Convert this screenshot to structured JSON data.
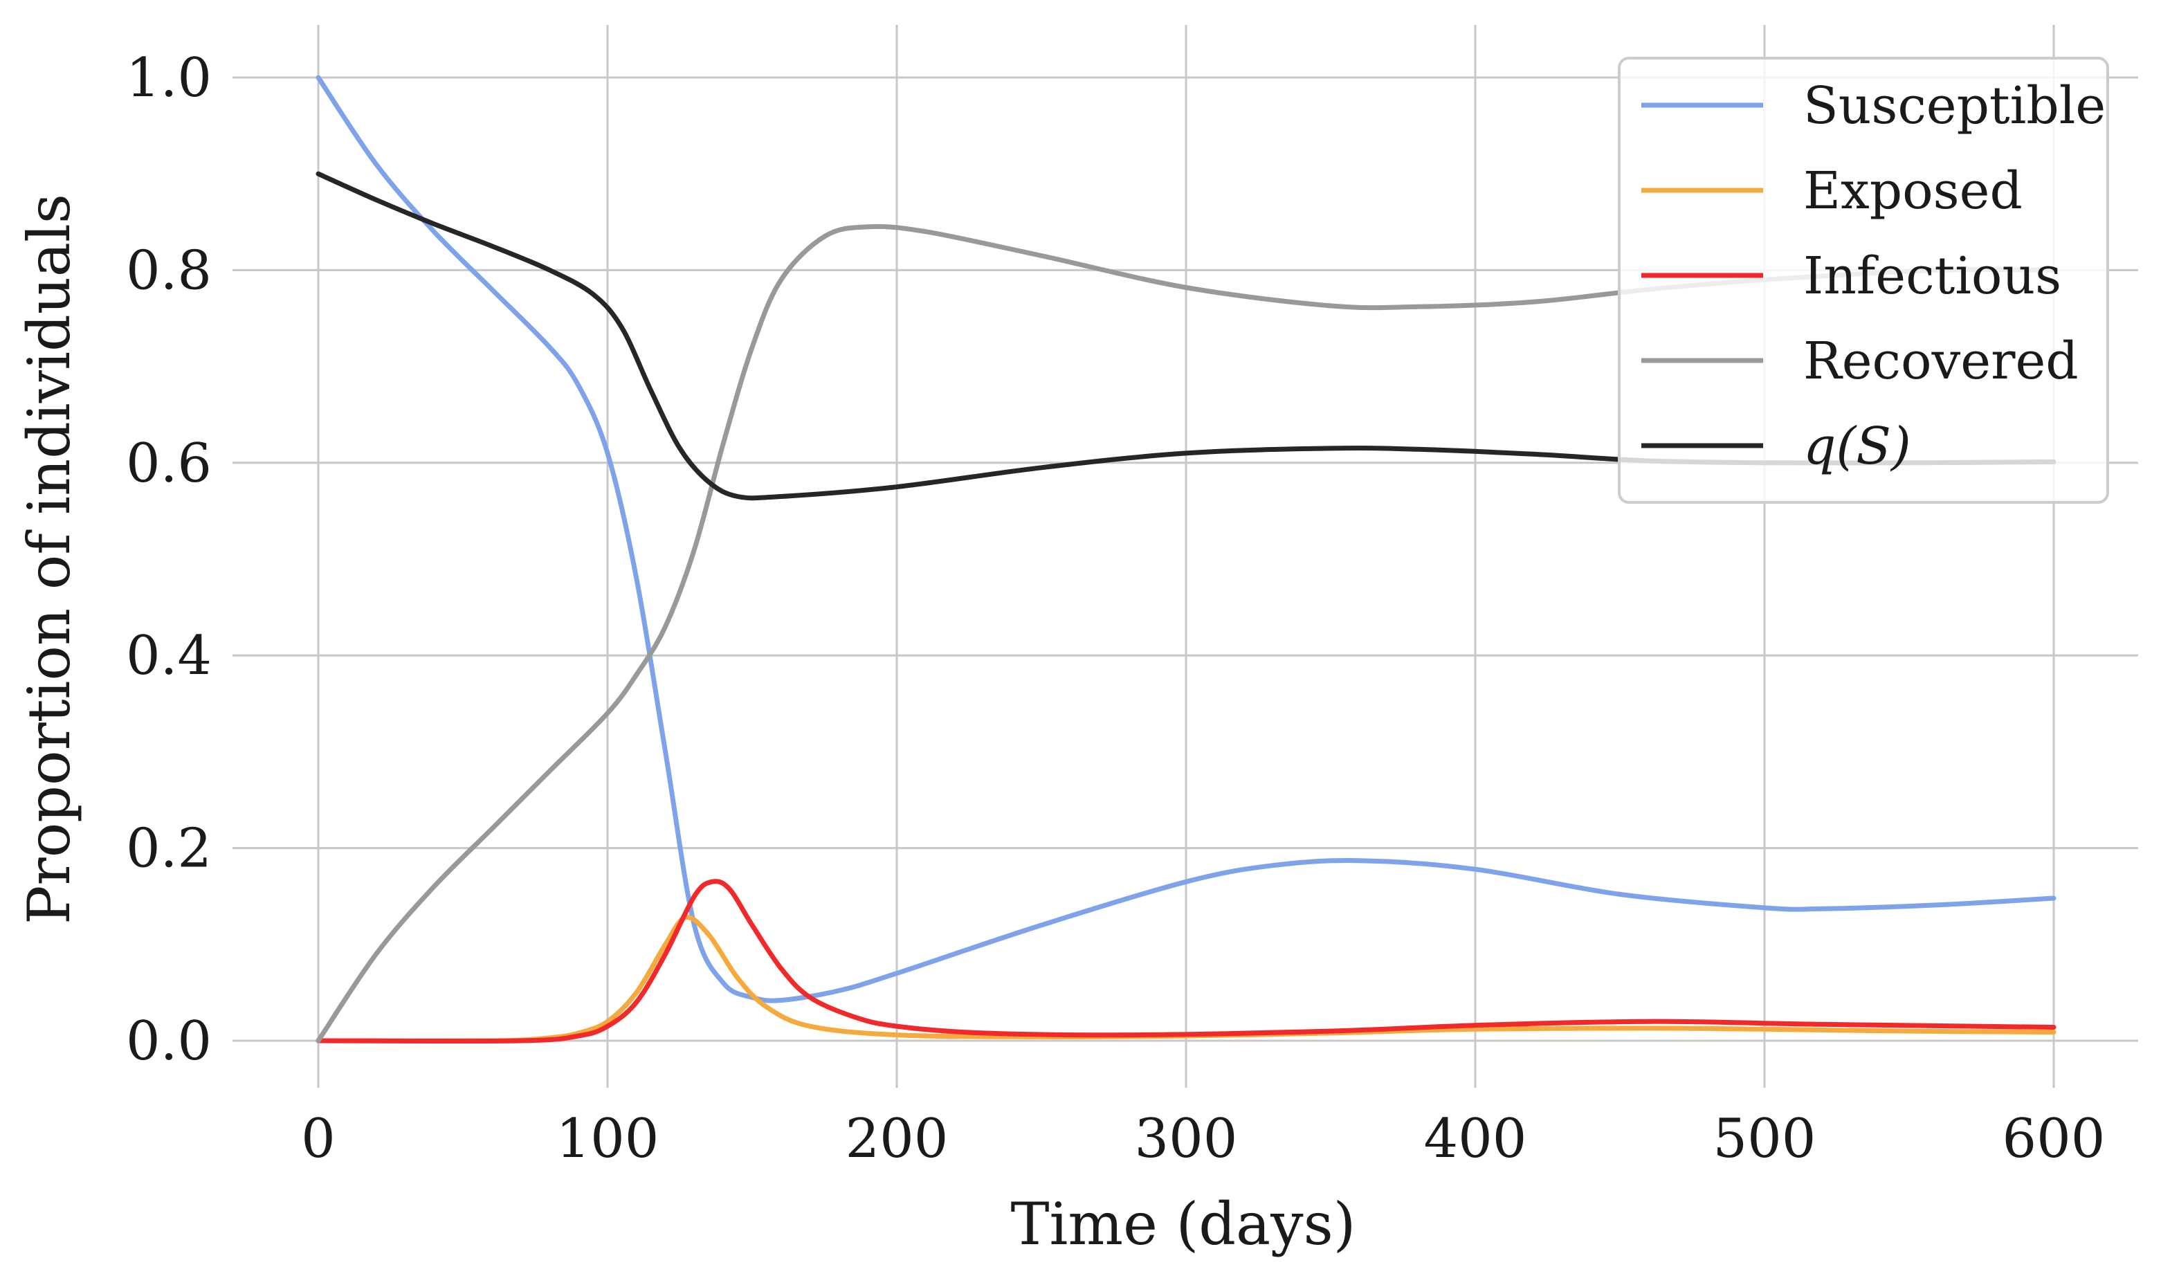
{
  "chart_data": {
    "type": "line",
    "title": "",
    "xlabel": "Time (days)",
    "ylabel": "Proportion of individuals",
    "xlim": [
      -30,
      630
    ],
    "ylim": [
      -0.04,
      1.06
    ],
    "xticks": [
      0,
      100,
      200,
      300,
      400,
      500,
      600
    ],
    "xtick_labels": [
      "0",
      "100",
      "200",
      "300",
      "400",
      "500",
      "600"
    ],
    "yticks": [
      0.0,
      0.2,
      0.4,
      0.6,
      0.8,
      1.0
    ],
    "ytick_labels": [
      "0.0",
      "0.2",
      "0.4",
      "0.6",
      "0.8",
      "1.0"
    ],
    "grid": true,
    "legend_position": "top-right",
    "series": [
      {
        "name": "Susceptible",
        "color": "#7ea3ea",
        "points": [
          [
            0,
            1.0
          ],
          [
            20,
            0.91
          ],
          [
            40,
            0.84
          ],
          [
            60,
            0.78
          ],
          [
            80,
            0.72
          ],
          [
            90,
            0.68
          ],
          [
            100,
            0.61
          ],
          [
            110,
            0.48
          ],
          [
            120,
            0.3
          ],
          [
            130,
            0.12
          ],
          [
            140,
            0.06
          ],
          [
            150,
            0.045
          ],
          [
            160,
            0.042
          ],
          [
            180,
            0.052
          ],
          [
            200,
            0.07
          ],
          [
            250,
            0.12
          ],
          [
            300,
            0.165
          ],
          [
            330,
            0.182
          ],
          [
            360,
            0.187
          ],
          [
            400,
            0.178
          ],
          [
            450,
            0.152
          ],
          [
            500,
            0.138
          ],
          [
            520,
            0.137
          ],
          [
            560,
            0.141
          ],
          [
            600,
            0.148
          ]
        ]
      },
      {
        "name": "Exposed",
        "color": "#f6a93c",
        "points": [
          [
            0,
            0.0
          ],
          [
            60,
            0.0
          ],
          [
            80,
            0.003
          ],
          [
            90,
            0.008
          ],
          [
            100,
            0.02
          ],
          [
            110,
            0.05
          ],
          [
            120,
            0.1
          ],
          [
            127,
            0.128
          ],
          [
            135,
            0.11
          ],
          [
            145,
            0.065
          ],
          [
            155,
            0.035
          ],
          [
            170,
            0.015
          ],
          [
            200,
            0.006
          ],
          [
            250,
            0.004
          ],
          [
            300,
            0.005
          ],
          [
            350,
            0.008
          ],
          [
            400,
            0.012
          ],
          [
            460,
            0.013
          ],
          [
            500,
            0.012
          ],
          [
            550,
            0.01
          ],
          [
            600,
            0.009
          ]
        ]
      },
      {
        "name": "Infectious",
        "color": "#f2292a",
        "points": [
          [
            0,
            0.0
          ],
          [
            70,
            0.0
          ],
          [
            90,
            0.005
          ],
          [
            100,
            0.015
          ],
          [
            110,
            0.04
          ],
          [
            120,
            0.09
          ],
          [
            130,
            0.15
          ],
          [
            136,
            0.165
          ],
          [
            142,
            0.158
          ],
          [
            150,
            0.12
          ],
          [
            160,
            0.075
          ],
          [
            170,
            0.045
          ],
          [
            185,
            0.025
          ],
          [
            200,
            0.015
          ],
          [
            230,
            0.008
          ],
          [
            280,
            0.006
          ],
          [
            350,
            0.01
          ],
          [
            400,
            0.016
          ],
          [
            460,
            0.02
          ],
          [
            520,
            0.017
          ],
          [
            600,
            0.014
          ]
        ]
      },
      {
        "name": "Recovered",
        "color": "#999999",
        "points": [
          [
            0,
            0.0
          ],
          [
            20,
            0.09
          ],
          [
            40,
            0.16
          ],
          [
            60,
            0.22
          ],
          [
            80,
            0.28
          ],
          [
            100,
            0.34
          ],
          [
            110,
            0.38
          ],
          [
            120,
            0.43
          ],
          [
            130,
            0.51
          ],
          [
            140,
            0.62
          ],
          [
            150,
            0.72
          ],
          [
            160,
            0.79
          ],
          [
            175,
            0.835
          ],
          [
            190,
            0.845
          ],
          [
            210,
            0.84
          ],
          [
            250,
            0.815
          ],
          [
            300,
            0.782
          ],
          [
            350,
            0.763
          ],
          [
            380,
            0.762
          ],
          [
            420,
            0.767
          ],
          [
            460,
            0.78
          ],
          [
            500,
            0.79
          ],
          [
            560,
            0.8
          ],
          [
            600,
            0.8
          ]
        ]
      },
      {
        "name": "q(S)",
        "color": "#262626",
        "points": [
          [
            0,
            0.9
          ],
          [
            20,
            0.873
          ],
          [
            40,
            0.848
          ],
          [
            60,
            0.825
          ],
          [
            80,
            0.8
          ],
          [
            95,
            0.775
          ],
          [
            105,
            0.74
          ],
          [
            115,
            0.675
          ],
          [
            125,
            0.615
          ],
          [
            135,
            0.58
          ],
          [
            145,
            0.565
          ],
          [
            160,
            0.565
          ],
          [
            200,
            0.575
          ],
          [
            250,
            0.595
          ],
          [
            300,
            0.61
          ],
          [
            350,
            0.615
          ],
          [
            380,
            0.614
          ],
          [
            420,
            0.609
          ],
          [
            460,
            0.602
          ],
          [
            500,
            0.6
          ],
          [
            550,
            0.6
          ],
          [
            600,
            0.601
          ]
        ]
      }
    ]
  }
}
